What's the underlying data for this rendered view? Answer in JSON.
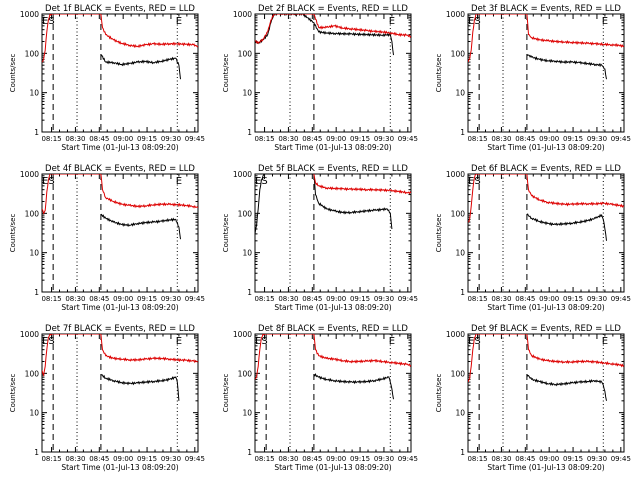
{
  "page": {
    "background": "#ffffff"
  },
  "colors": {
    "events": "#000000",
    "lld": "#dd0000",
    "axis": "#000000"
  },
  "common": {
    "ylabel": "Counts/sec",
    "xlabel": "Start Time (01-Jul-13 08:09:20)",
    "ytick_labels": [
      "1",
      "10",
      "100",
      "1000"
    ],
    "xtick_labels": [
      "08:15",
      "08:30",
      "08:45",
      "09:00",
      "09:15",
      "09:30",
      "09:45"
    ],
    "marker_labels": {
      "E": "E",
      "S": "S"
    }
  },
  "chart_data": [
    {
      "type": "line",
      "title": "Det 1f BLACK = Events, RED = LLD",
      "x_unit": "minutes after 08:09:20",
      "xlim": [
        0,
        98
      ],
      "ylim": [
        1,
        1000
      ],
      "yscale": "log",
      "markers": {
        "dashed": [
          7,
          37
        ],
        "dotted": [
          22,
          85,
          98
        ],
        "E_labels": [
          2,
          86
        ],
        "S_labels": [
          6
        ]
      },
      "series": [
        {
          "name": "Events",
          "x": [
            37,
            40,
            45,
            50,
            55,
            60,
            65,
            70,
            75,
            80,
            84,
            86,
            87
          ],
          "y": [
            95,
            60,
            58,
            52,
            55,
            60,
            62,
            58,
            63,
            70,
            75,
            50,
            22
          ]
        },
        {
          "name": "LLD",
          "x": [
            0,
            1,
            2,
            3,
            4,
            5,
            6,
            37,
            38,
            40,
            45,
            50,
            55,
            60,
            65,
            70,
            75,
            80,
            85,
            90,
            95,
            98
          ],
          "y": [
            60,
            70,
            120,
            350,
            700,
            1000,
            1000,
            1000,
            450,
            300,
            220,
            180,
            160,
            150,
            165,
            175,
            170,
            175,
            175,
            170,
            165,
            150
          ]
        }
      ]
    },
    {
      "type": "line",
      "title": "Det 2f BLACK = Events, RED = LLD",
      "x_unit": "minutes after 08:09:20",
      "xlim": [
        0,
        98
      ],
      "ylim": [
        1,
        1000
      ],
      "yscale": "log",
      "markers": {
        "dashed": [
          37
        ],
        "dotted": [
          22,
          85,
          98
        ],
        "E_labels": [
          86
        ],
        "S_labels": []
      },
      "series": [
        {
          "name": "Events",
          "x": [
            0,
            2,
            5,
            8,
            10,
            12,
            15,
            20,
            25,
            30,
            37,
            40,
            45,
            50,
            60,
            70,
            80,
            85,
            86,
            87
          ],
          "y": [
            210,
            180,
            220,
            300,
            600,
            1000,
            1000,
            1000,
            1000,
            1000,
            600,
            350,
            330,
            320,
            310,
            300,
            290,
            300,
            200,
            90
          ]
        },
        {
          "name": "LLD",
          "x": [
            0,
            2,
            5,
            8,
            10,
            12,
            37,
            40,
            45,
            50,
            55,
            60,
            65,
            70,
            75,
            80,
            85,
            90,
            95,
            98
          ],
          "y": [
            210,
            180,
            230,
            350,
            700,
            1000,
            1000,
            450,
            460,
            500,
            440,
            420,
            400,
            380,
            360,
            350,
            330,
            300,
            290,
            270
          ]
        }
      ]
    },
    {
      "type": "line",
      "title": "Det 3f BLACK = Events, RED = LLD",
      "x_unit": "minutes after 08:09:20",
      "xlim": [
        0,
        98
      ],
      "ylim": [
        1,
        1000
      ],
      "yscale": "log",
      "markers": {
        "dashed": [
          7,
          37
        ],
        "dotted": [
          22,
          85,
          98
        ],
        "E_labels": [
          2,
          86
        ],
        "S_labels": [
          6
        ]
      },
      "series": [
        {
          "name": "Events",
          "x": [
            37,
            40,
            45,
            50,
            55,
            60,
            65,
            70,
            75,
            80,
            84,
            86,
            87
          ],
          "y": [
            95,
            80,
            70,
            65,
            63,
            60,
            60,
            58,
            55,
            52,
            50,
            40,
            22
          ]
        },
        {
          "name": "LLD",
          "x": [
            0,
            1,
            2,
            3,
            4,
            5,
            6,
            37,
            38,
            40,
            45,
            50,
            55,
            60,
            65,
            70,
            75,
            80,
            85,
            90,
            95,
            98
          ],
          "y": [
            60,
            70,
            120,
            350,
            700,
            1000,
            1000,
            1000,
            300,
            250,
            220,
            210,
            200,
            195,
            190,
            185,
            180,
            175,
            170,
            165,
            160,
            150
          ]
        }
      ]
    },
    {
      "type": "line",
      "title": "Det 4f BLACK = Events, RED = LLD",
      "x_unit": "minutes after 08:09:20",
      "xlim": [
        0,
        98
      ],
      "ylim": [
        1,
        1000
      ],
      "yscale": "log",
      "markers": {
        "dashed": [
          7,
          37
        ],
        "dotted": [
          22,
          85,
          98
        ],
        "E_labels": [
          2,
          86
        ],
        "S_labels": [
          6
        ]
      },
      "series": [
        {
          "name": "Events",
          "x": [
            37,
            40,
            45,
            50,
            55,
            60,
            65,
            70,
            75,
            80,
            84,
            86,
            87
          ],
          "y": [
            95,
            75,
            60,
            52,
            50,
            55,
            58,
            60,
            63,
            68,
            70,
            45,
            22
          ]
        },
        {
          "name": "LLD",
          "x": [
            0,
            1,
            2,
            3,
            4,
            5,
            6,
            37,
            38,
            40,
            45,
            50,
            55,
            60,
            65,
            70,
            75,
            80,
            85,
            90,
            95,
            98
          ],
          "y": [
            130,
            100,
            120,
            350,
            700,
            1000,
            1000,
            1000,
            400,
            250,
            200,
            170,
            160,
            150,
            155,
            165,
            170,
            170,
            165,
            160,
            150,
            140
          ]
        }
      ]
    },
    {
      "type": "line",
      "title": "Det 5f BLACK = Events, RED = LLD",
      "x_unit": "minutes after 08:09:20",
      "xlim": [
        0,
        98
      ],
      "ylim": [
        1,
        1000
      ],
      "yscale": "log",
      "markers": {
        "dashed": [
          37
        ],
        "dotted": [
          22,
          85,
          98
        ],
        "E_labels": [
          2
        ],
        "S_labels": [
          6
        ]
      },
      "series": [
        {
          "name": "Events",
          "x": [
            0,
            1,
            2,
            3,
            4,
            5,
            6,
            7,
            37,
            38,
            40,
            45,
            50,
            55,
            60,
            65,
            70,
            75,
            80,
            83,
            84,
            85,
            86
          ],
          "y": [
            30,
            50,
            130,
            400,
            700,
            900,
            1000,
            1000,
            1000,
            300,
            180,
            130,
            115,
            105,
            105,
            110,
            115,
            120,
            125,
            130,
            120,
            100,
            40
          ]
        },
        {
          "name": "LLD",
          "x": [
            37,
            38,
            40,
            45,
            50,
            55,
            60,
            65,
            70,
            75,
            80,
            85,
            90,
            95,
            98
          ],
          "y": [
            1000,
            600,
            500,
            440,
            430,
            420,
            410,
            410,
            400,
            400,
            390,
            380,
            360,
            340,
            330
          ]
        }
      ]
    },
    {
      "type": "line",
      "title": "Det 6f BLACK = Events, RED = LLD",
      "x_unit": "minutes after 08:09:20",
      "xlim": [
        0,
        98
      ],
      "ylim": [
        1,
        1000
      ],
      "yscale": "log",
      "markers": {
        "dashed": [
          7,
          37
        ],
        "dotted": [
          22,
          85,
          98
        ],
        "E_labels": [
          2
        ],
        "S_labels": [
          6
        ]
      },
      "series": [
        {
          "name": "Events",
          "x": [
            37,
            40,
            45,
            50,
            55,
            60,
            65,
            70,
            75,
            80,
            84,
            85,
            86,
            87
          ],
          "y": [
            95,
            75,
            62,
            55,
            52,
            54,
            56,
            60,
            65,
            75,
            90,
            70,
            40,
            20
          ]
        },
        {
          "name": "LLD",
          "x": [
            0,
            1,
            2,
            3,
            4,
            5,
            6,
            37,
            38,
            40,
            45,
            50,
            55,
            60,
            65,
            70,
            75,
            80,
            85,
            90,
            95,
            98
          ],
          "y": [
            60,
            70,
            150,
            400,
            800,
            1000,
            1000,
            1000,
            400,
            280,
            220,
            190,
            180,
            170,
            170,
            175,
            175,
            175,
            180,
            170,
            160,
            150
          ]
        }
      ]
    },
    {
      "type": "line",
      "title": "Det 7f BLACK = Events, RED = LLD",
      "x_unit": "minutes after 08:09:20",
      "xlim": [
        0,
        98
      ],
      "ylim": [
        1,
        1000
      ],
      "yscale": "log",
      "markers": {
        "dashed": [
          7,
          37
        ],
        "dotted": [
          22,
          85,
          98
        ],
        "E_labels": [
          2,
          86
        ],
        "S_labels": [
          6
        ]
      },
      "series": [
        {
          "name": "Events",
          "x": [
            37,
            40,
            45,
            50,
            55,
            60,
            65,
            70,
            75,
            80,
            84,
            85,
            86
          ],
          "y": [
            95,
            75,
            65,
            58,
            55,
            57,
            60,
            62,
            65,
            70,
            80,
            60,
            20
          ]
        },
        {
          "name": "LLD",
          "x": [
            0,
            1,
            2,
            3,
            4,
            5,
            6,
            37,
            38,
            40,
            45,
            50,
            55,
            60,
            65,
            70,
            75,
            80,
            85,
            90,
            95,
            98
          ],
          "y": [
            120,
            90,
            150,
            400,
            800,
            1000,
            1000,
            1000,
            400,
            280,
            240,
            230,
            220,
            220,
            230,
            240,
            240,
            230,
            220,
            215,
            205,
            200
          ]
        }
      ]
    },
    {
      "type": "line",
      "title": "Det 8f BLACK = Events, RED = LLD",
      "x_unit": "minutes after 08:09:20",
      "xlim": [
        0,
        98
      ],
      "ylim": [
        1,
        1000
      ],
      "yscale": "log",
      "markers": {
        "dashed": [
          7,
          37
        ],
        "dotted": [
          22,
          85,
          98
        ],
        "E_labels": [
          2,
          86
        ],
        "S_labels": [
          6
        ]
      },
      "series": [
        {
          "name": "Events",
          "x": [
            37,
            40,
            45,
            50,
            55,
            60,
            65,
            70,
            75,
            80,
            84,
            85,
            86,
            87
          ],
          "y": [
            95,
            80,
            70,
            65,
            62,
            60,
            60,
            62,
            65,
            72,
            80,
            60,
            40,
            22
          ]
        },
        {
          "name": "LLD",
          "x": [
            0,
            1,
            2,
            3,
            4,
            5,
            6,
            37,
            38,
            40,
            45,
            50,
            55,
            60,
            65,
            70,
            75,
            80,
            85,
            90,
            95,
            98
          ],
          "y": [
            70,
            80,
            150,
            400,
            800,
            1000,
            1000,
            1000,
            400,
            280,
            240,
            230,
            210,
            200,
            200,
            205,
            210,
            200,
            190,
            180,
            170,
            160
          ]
        }
      ]
    },
    {
      "type": "line",
      "title": "Det 9f BLACK = Events, RED = LLD",
      "x_unit": "minutes after 08:09:20",
      "xlim": [
        0,
        98
      ],
      "ylim": [
        1,
        1000
      ],
      "yscale": "log",
      "markers": {
        "dashed": [
          7,
          37
        ],
        "dotted": [
          22,
          85,
          98
        ],
        "E_labels": [
          2,
          86
        ],
        "S_labels": [
          6
        ]
      },
      "series": [
        {
          "name": "Events",
          "x": [
            37,
            40,
            45,
            50,
            55,
            60,
            65,
            70,
            75,
            80,
            84,
            85,
            86,
            87
          ],
          "y": [
            95,
            70,
            62,
            55,
            52,
            54,
            57,
            60,
            62,
            65,
            60,
            50,
            35,
            20
          ]
        },
        {
          "name": "LLD",
          "x": [
            0,
            1,
            2,
            3,
            4,
            5,
            6,
            37,
            38,
            40,
            45,
            50,
            55,
            60,
            65,
            70,
            75,
            80,
            85,
            90,
            95,
            98
          ],
          "y": [
            60,
            70,
            150,
            400,
            800,
            1000,
            1000,
            1000,
            400,
            280,
            230,
            210,
            200,
            195,
            195,
            200,
            200,
            195,
            185,
            175,
            165,
            155
          ]
        }
      ]
    }
  ]
}
